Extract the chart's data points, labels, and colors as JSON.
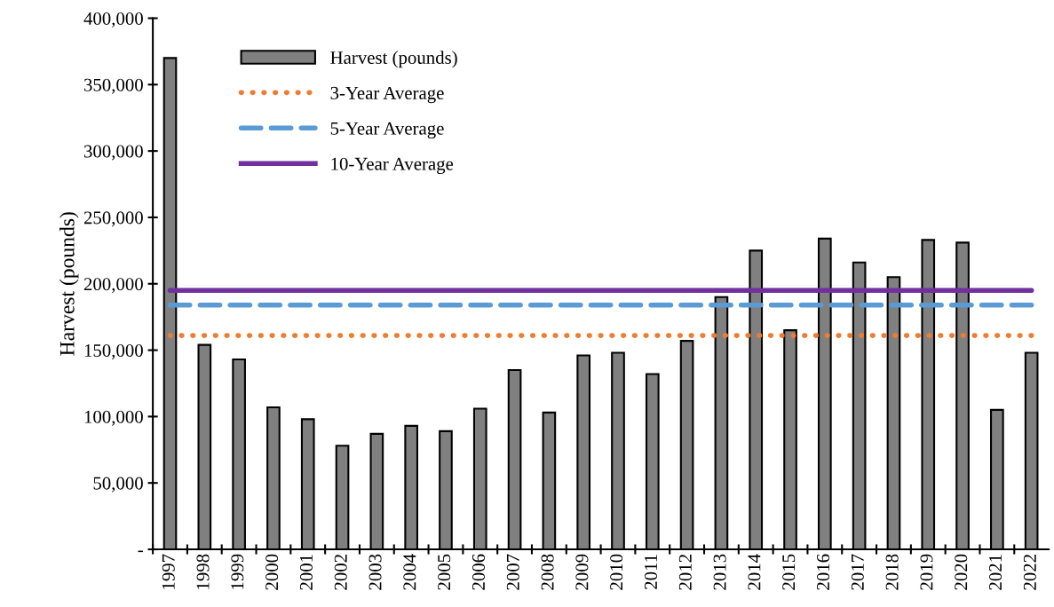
{
  "chart_data": {
    "type": "bar",
    "ylabel": "Harvest (pounds)",
    "categories": [
      "1997",
      "1998",
      "1999",
      "2000",
      "2001",
      "2002",
      "2003",
      "2004",
      "2005",
      "2006",
      "2007",
      "2008",
      "2009",
      "2010",
      "2011",
      "2012",
      "2013",
      "2014",
      "2015",
      "2016",
      "2017",
      "2018",
      "2019",
      "2020",
      "2021",
      "2022"
    ],
    "series": [
      {
        "name": "Harvest (pounds)",
        "color": "#808080",
        "values": [
          370000,
          154000,
          143000,
          107000,
          98000,
          78000,
          87000,
          93000,
          89000,
          106000,
          135000,
          103000,
          146000,
          148000,
          132000,
          157000,
          190000,
          225000,
          165000,
          234000,
          216000,
          205000,
          233000,
          231000,
          105000,
          148000
        ]
      },
      {
        "name": "3-Year Average",
        "type": "line",
        "color": "#ed7d31",
        "line_style": "dotted",
        "values": [
          161000,
          161000,
          161000,
          161000,
          161000,
          161000,
          161000,
          161000,
          161000,
          161000,
          161000,
          161000,
          161000,
          161000,
          161000,
          161000,
          161000,
          161000,
          161000,
          161000,
          161000,
          161000,
          161000,
          161000,
          161000,
          161000
        ]
      },
      {
        "name": "5-Year Average",
        "type": "line",
        "color": "#5b9bd5",
        "line_style": "dashed",
        "values": [
          184000,
          184000,
          184000,
          184000,
          184000,
          184000,
          184000,
          184000,
          184000,
          184000,
          184000,
          184000,
          184000,
          184000,
          184000,
          184000,
          184000,
          184000,
          184000,
          184000,
          184000,
          184000,
          184000,
          184000,
          184000,
          184000
        ]
      },
      {
        "name": "10-Year Average",
        "type": "line",
        "color": "#7030a0",
        "line_style": "solid",
        "values": [
          195000,
          195000,
          195000,
          195000,
          195000,
          195000,
          195000,
          195000,
          195000,
          195000,
          195000,
          195000,
          195000,
          195000,
          195000,
          195000,
          195000,
          195000,
          195000,
          195000,
          195000,
          195000,
          195000,
          195000,
          195000,
          195000
        ]
      }
    ],
    "ylim": [
      0,
      400000
    ],
    "yticks": [
      {
        "value": 0,
        "label": "-"
      },
      {
        "value": 50000,
        "label": "50,000"
      },
      {
        "value": 100000,
        "label": "100,000"
      },
      {
        "value": 150000,
        "label": "150,000"
      },
      {
        "value": 200000,
        "label": "200,000"
      },
      {
        "value": 250000,
        "label": "250,000"
      },
      {
        "value": 300000,
        "label": "300,000"
      },
      {
        "value": 350000,
        "label": "350,000"
      },
      {
        "value": 400000,
        "label": "400,000"
      }
    ],
    "grid": false,
    "legend": "top left"
  }
}
